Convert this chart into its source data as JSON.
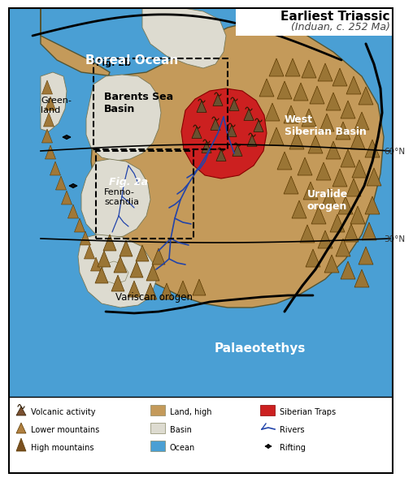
{
  "title_line1": "Earliest Triassic",
  "title_line2": "(Induan, c. 252 Ma)",
  "bg_ocean_color": "#4a9fd4",
  "land_high_color": "#c49a5a",
  "basin_color": "#dddbd0",
  "siberian_traps_color": "#cc2020",
  "river_color": "#2244aa",
  "mountain_color": "#9a7535",
  "mountain_edge": "#5a3800",
  "plate_line_color": "#111111",
  "label_boreal": "Boreal Ocean",
  "label_palaeotethys": "Palaeotethys",
  "label_west_siberian": "West\nSiberian Basin",
  "label_uralide": "Uralide\norogen",
  "label_barents": "Barents Sea\nBasin",
  "label_fennoscandia": "Fenno-\nscandia",
  "label_greenland": "Green-\nland",
  "label_variscan": "Variscan orogen",
  "label_fig2b": "Fig. 2b",
  "label_fig2a": "Fig. 2a",
  "lat_60": "60°N",
  "lat_30": "30°N"
}
